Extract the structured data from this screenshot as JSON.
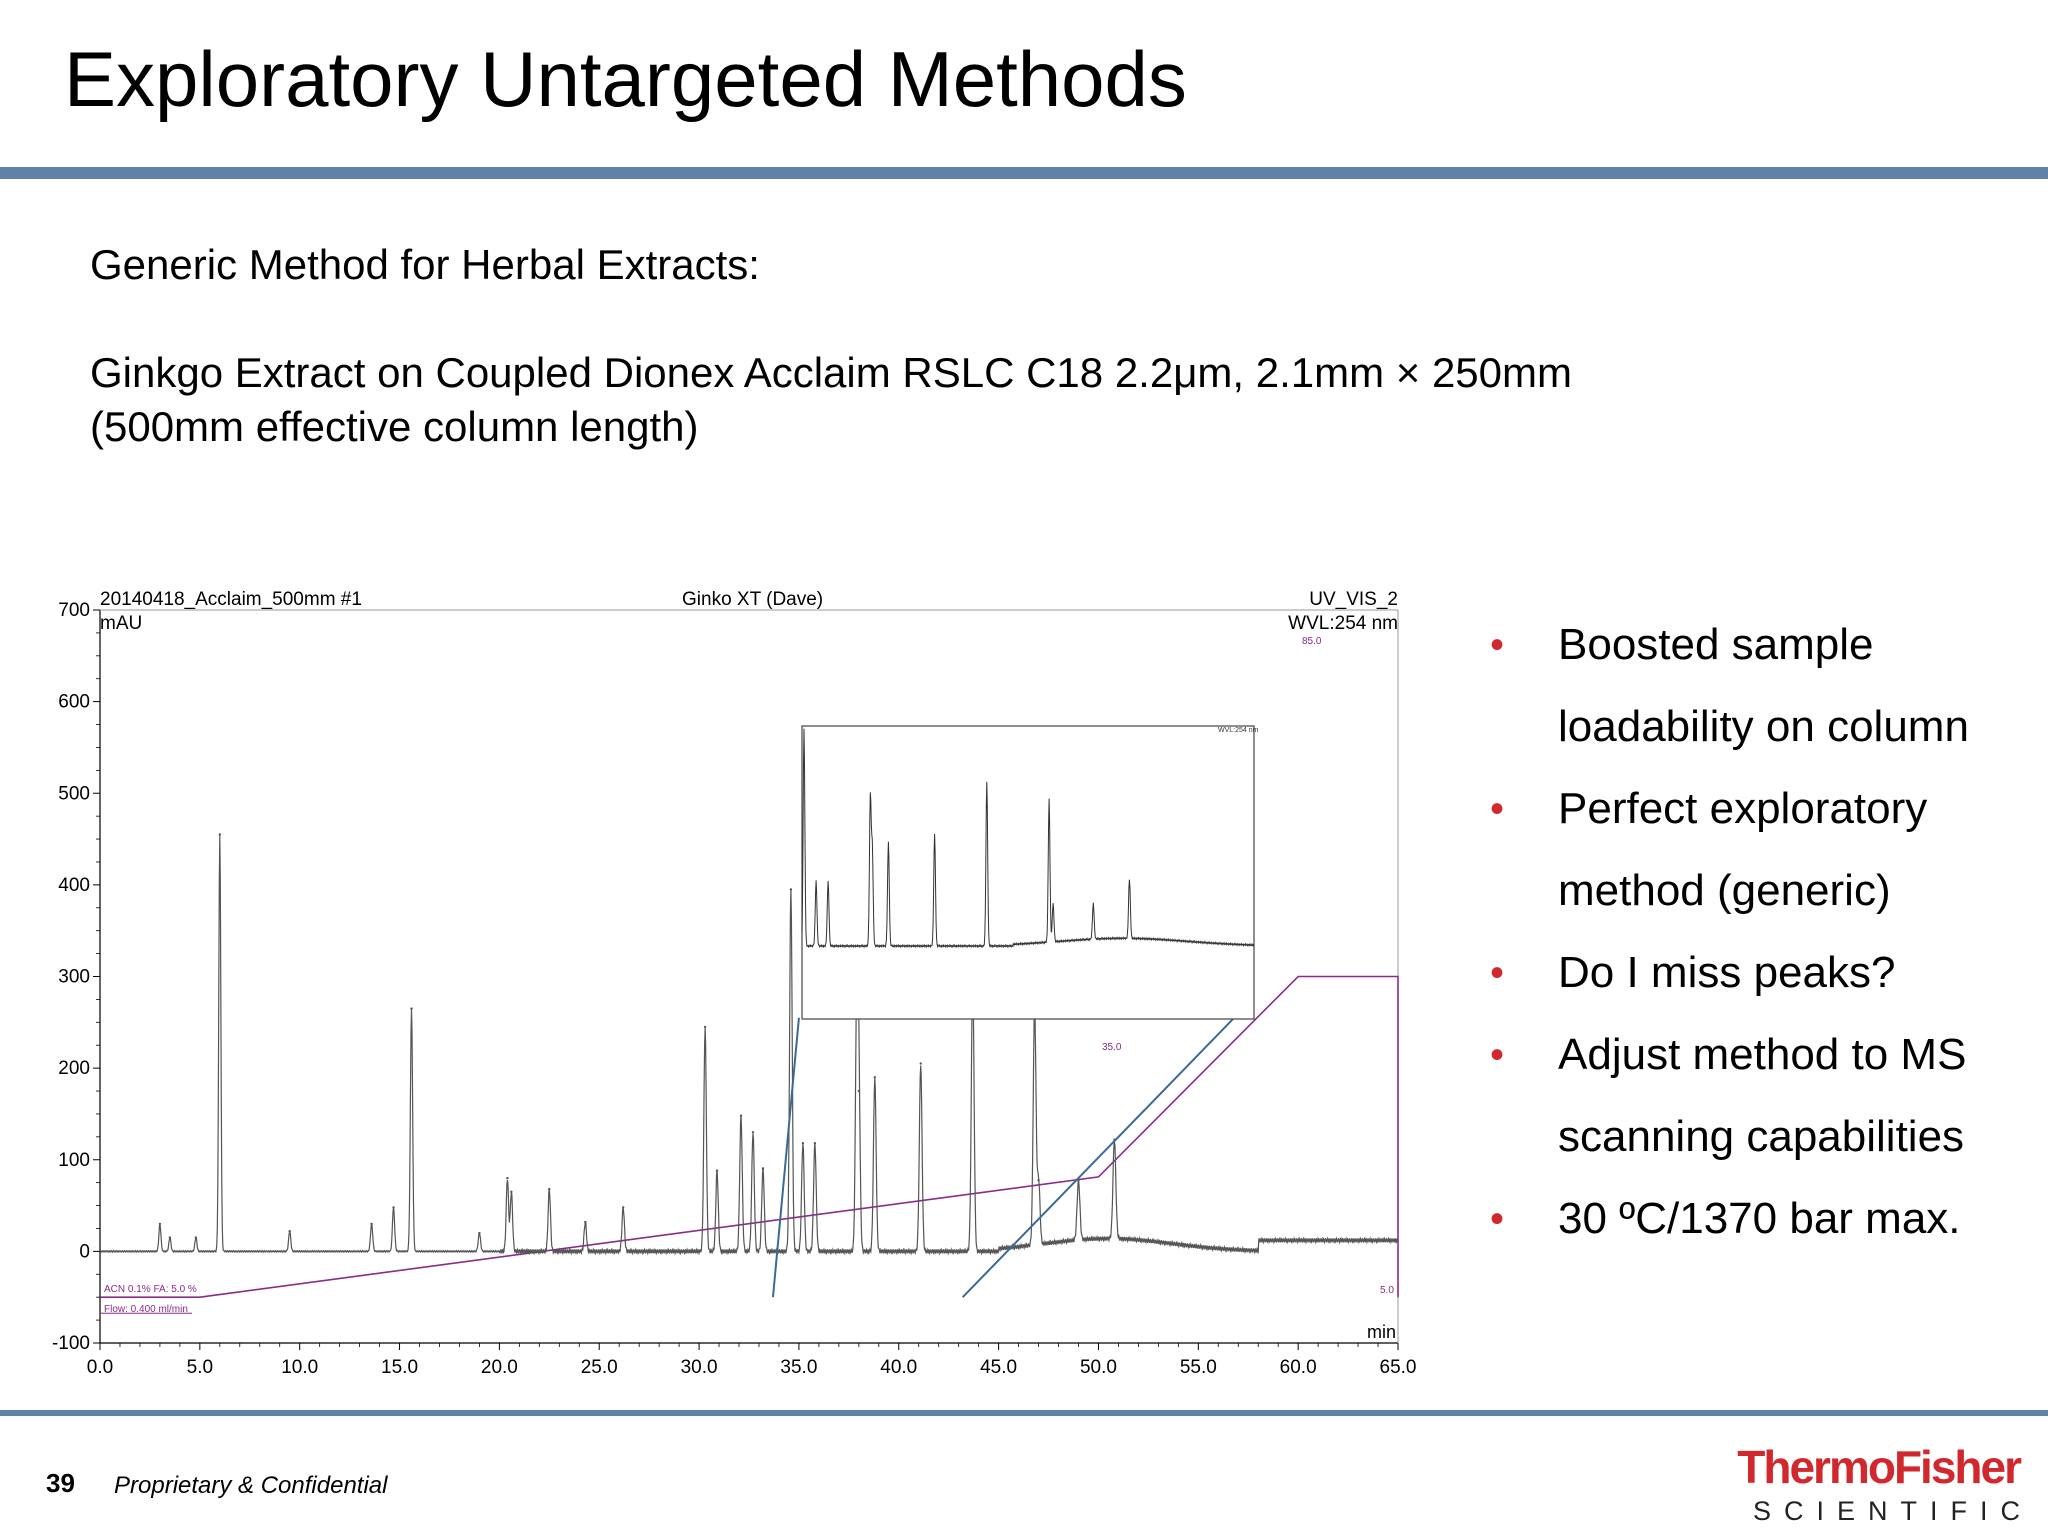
{
  "slide": {
    "title": "Exploratory Untargeted Methods",
    "subtitle": "Generic Method for Herbal Extracts:",
    "description_line1": "Ginkgo Extract on Coupled Dionex Acclaim RSLC C18 2.2μm, 2.1mm × 250mm",
    "description_line2": "(500mm effective column length)",
    "bullets": [
      "Boosted sample loadability on column",
      "Perfect exploratory method (generic)",
      "Do I miss peaks?",
      "Adjust method to MS scanning capabilities",
      "30 ºC/1370 bar max."
    ],
    "page_number": "39",
    "confidential": "Proprietary & Confidential",
    "logo_brand": "ThermoFisher",
    "logo_sub": "SCIENTIFIC"
  },
  "chart_data": {
    "type": "line",
    "header_left_line1": "20140418_Acclaim_500mm #1",
    "header_left_line2": "mAU",
    "header_center": "Ginko XT (Dave)",
    "header_right_line1": "UV_VIS_2",
    "header_right_line2": "WVL:254 nm",
    "xlabel": "min",
    "ylabel": "mAU",
    "xlim": [
      0,
      65
    ],
    "ylim": [
      -100,
      700
    ],
    "x_ticks": [
      0.0,
      5.0,
      10.0,
      15.0,
      20.0,
      25.0,
      30.0,
      35.0,
      40.0,
      45.0,
      50.0,
      55.0,
      60.0,
      65.0
    ],
    "y_ticks": [
      -100,
      0,
      100,
      200,
      300,
      400,
      500,
      600,
      700
    ],
    "baseline": 0,
    "peaks": [
      {
        "x": 3.0,
        "y": 30
      },
      {
        "x": 3.5,
        "y": 15
      },
      {
        "x": 4.8,
        "y": 15
      },
      {
        "x": 6.0,
        "y": 455
      },
      {
        "x": 9.5,
        "y": 22
      },
      {
        "x": 13.6,
        "y": 30
      },
      {
        "x": 14.7,
        "y": 48
      },
      {
        "x": 15.6,
        "y": 265
      },
      {
        "x": 19.0,
        "y": 20
      },
      {
        "x": 20.4,
        "y": 80
      },
      {
        "x": 20.6,
        "y": 65
      },
      {
        "x": 22.5,
        "y": 68
      },
      {
        "x": 24.3,
        "y": 32
      },
      {
        "x": 26.2,
        "y": 48
      },
      {
        "x": 30.3,
        "y": 245
      },
      {
        "x": 30.9,
        "y": 88
      },
      {
        "x": 32.1,
        "y": 148
      },
      {
        "x": 32.7,
        "y": 130
      },
      {
        "x": 33.2,
        "y": 90
      },
      {
        "x": 34.6,
        "y": 395
      },
      {
        "x": 35.2,
        "y": 118
      },
      {
        "x": 35.8,
        "y": 118
      },
      {
        "x": 37.9,
        "y": 270
      },
      {
        "x": 38.0,
        "y": 175
      },
      {
        "x": 38.8,
        "y": 190
      },
      {
        "x": 41.1,
        "y": 205
      },
      {
        "x": 43.7,
        "y": 300
      },
      {
        "x": 46.8,
        "y": 260
      },
      {
        "x": 47.0,
        "y": 70
      },
      {
        "x": 49.0,
        "y": 65
      },
      {
        "x": 50.8,
        "y": 108
      }
    ],
    "gradient_label_start": "ACN 0.1% FA: 5.0 %",
    "flow_label": "Flow: 0.400 ml/min",
    "gradient_label_mid": "35.0",
    "gradient_label_end": "85.0",
    "gradient_label_right": "5.0",
    "gradient_program": [
      {
        "x": 0.0,
        "percent": 5.0
      },
      {
        "x": 5.0,
        "percent": 5.0
      },
      {
        "x": 50.0,
        "percent": 35.0
      },
      {
        "x": 60.0,
        "percent": 85.0
      },
      {
        "x": 65.0,
        "percent": 85.0
      },
      {
        "x": 65.0,
        "percent": 5.0
      }
    ],
    "inset_label": "WVL:254 nm",
    "gradient_color": "#8b2a8b",
    "zoom_line_color": "#3a6a96",
    "trace_color": "#555555"
  }
}
